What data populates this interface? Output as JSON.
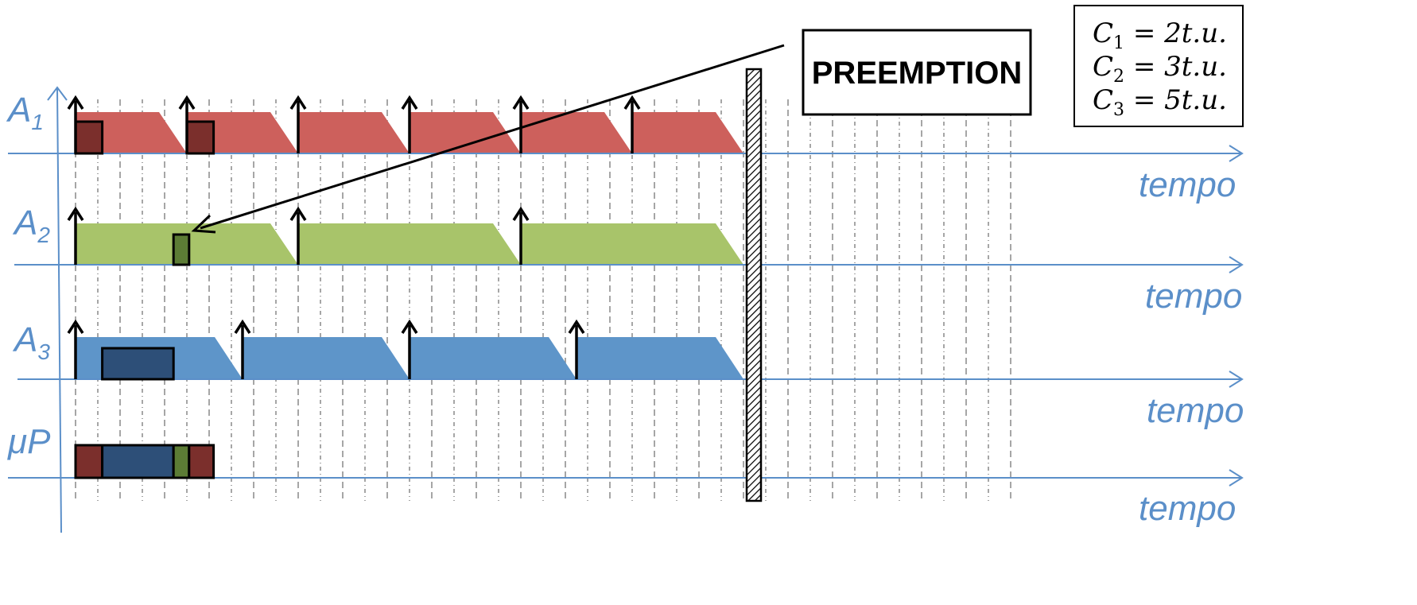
{
  "colors": {
    "axis": "#5b8fc9",
    "grid": "#808080",
    "a1_band": "#cd605c",
    "a1_exec": "#7b2f2c",
    "a2_band": "#a8c46a",
    "a2_exec": "#5c7c35",
    "a3_band": "#5e95c9",
    "a3_exec": "#2d4f78"
  },
  "time_axis": {
    "tick_count": 43,
    "deadline_time": 30
  },
  "rows": [
    {
      "id": "A1",
      "label": "A",
      "label_sub": "1",
      "axis_label": "tempo",
      "band_color": "#cd605c",
      "exec_color": "#7b2f2c",
      "period": 5,
      "releases": [
        0,
        5,
        10,
        15,
        20,
        25
      ],
      "bands": [
        [
          0,
          5
        ],
        [
          5,
          10
        ],
        [
          10,
          15
        ],
        [
          15,
          20
        ],
        [
          20,
          25
        ],
        [
          25,
          30
        ]
      ],
      "exec_blocks": [
        [
          0,
          1.2
        ],
        [
          5,
          6.2
        ]
      ]
    },
    {
      "id": "A2",
      "label": "A",
      "label_sub": "2",
      "axis_label": "tempo",
      "band_color": "#a8c46a",
      "exec_color": "#5c7c35",
      "period": 10,
      "releases": [
        0,
        10,
        20
      ],
      "bands": [
        [
          0,
          10
        ],
        [
          10,
          20
        ],
        [
          20,
          30
        ]
      ],
      "exec_blocks": [
        [
          4.4,
          5.1
        ]
      ]
    },
    {
      "id": "A3",
      "label": "A",
      "label_sub": "3",
      "axis_label": "tempo",
      "band_color": "#5e95c9",
      "exec_color": "#2d4f78",
      "period": 7.5,
      "releases": [
        0,
        7.5,
        15,
        22.5
      ],
      "bands": [
        [
          0,
          7.5
        ],
        [
          7.5,
          15
        ],
        [
          15,
          22.5
        ],
        [
          22.5,
          30
        ]
      ],
      "exec_blocks": [
        [
          1.2,
          4.4
        ]
      ]
    },
    {
      "id": "uP",
      "label": "μP",
      "label_sub": "",
      "axis_label": "tempo",
      "band_color": "",
      "exec_color": "",
      "period": 0,
      "releases": [],
      "bands": [],
      "exec_blocks": [
        {
          "span": [
            0,
            1.2
          ],
          "color": "#7b2f2c"
        },
        {
          "span": [
            1.2,
            4.4
          ],
          "color": "#2d4f78"
        },
        {
          "span": [
            4.4,
            5.1
          ],
          "color": "#5c7c35"
        },
        {
          "span": [
            5.1,
            6.2
          ],
          "color": "#7b2f2c"
        }
      ]
    }
  ],
  "callout": {
    "text": "PREEMPTION"
  },
  "formulas": [
    {
      "c": "C",
      "sub": "1",
      "rest": " = 2t.u."
    },
    {
      "c": "C",
      "sub": "2",
      "rest": " = 3t.u."
    },
    {
      "c": "C",
      "sub": "3",
      "rest": " = 5t.u."
    }
  ]
}
